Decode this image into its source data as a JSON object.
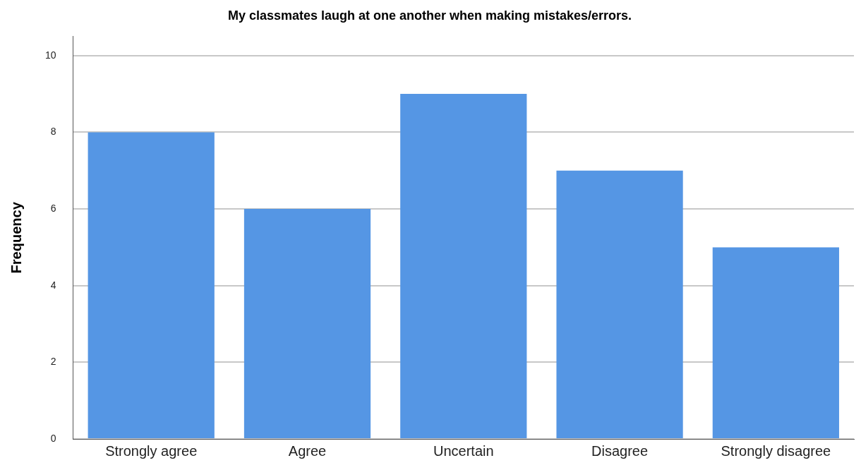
{
  "chart_data": {
    "type": "bar",
    "title": "My classmates laugh at one another when making mistakes/errors.",
    "ylabel": "Frequency",
    "categories": [
      "Strongly agree",
      "Agree",
      "Uncertain",
      "Disagree",
      "Strongly disagree"
    ],
    "values": [
      8,
      6,
      9,
      7,
      5
    ],
    "color": "#5596e4",
    "ylim": [
      0,
      10.5
    ],
    "yticks": [
      0,
      2,
      4,
      6,
      8,
      10
    ],
    "grid": "y"
  }
}
